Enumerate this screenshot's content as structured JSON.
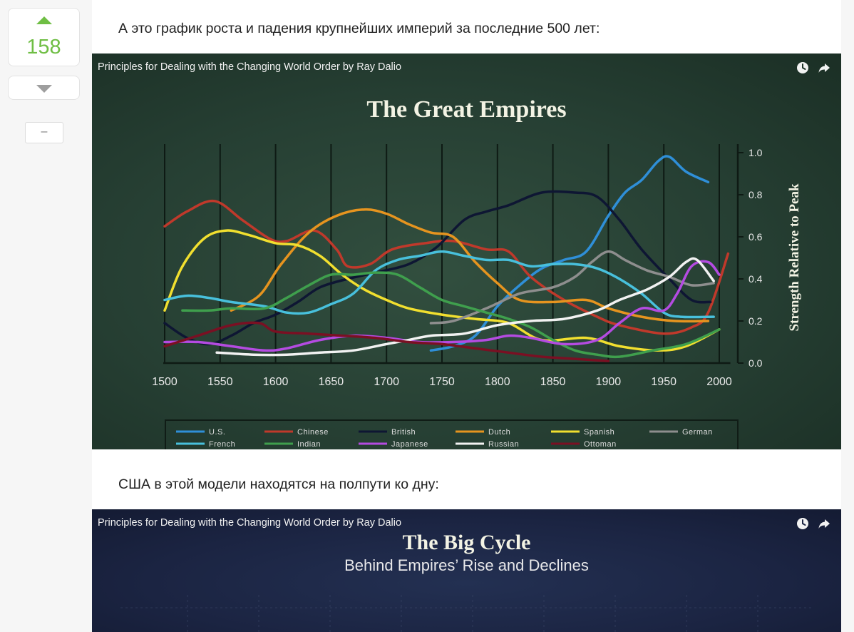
{
  "vote": {
    "count": "158",
    "collapse_label": "–"
  },
  "content": {
    "para1": "А это график роста и падения крупнейших империй за последние 500 лет:",
    "para2": "США в этой модели находятся на полпути ко дну:"
  },
  "video1": {
    "title": "Principles for Dealing with the Changing World Order by Ray Dalio",
    "icons": [
      "clock-icon",
      "share-icon"
    ]
  },
  "video2": {
    "title": "Principles for Dealing with the Changing World Order by Ray Dalio",
    "heading": "The Big Cycle",
    "subheading": "Behind Empires’ Rise and Declines"
  },
  "chart_data": {
    "type": "line",
    "title": "The Great Empires",
    "ylabel": "Strength Relative to Peak",
    "xlabel": "",
    "xlim": [
      1500,
      2010
    ],
    "ylim": [
      0,
      1
    ],
    "xticks": [
      1500,
      1550,
      1600,
      1650,
      1700,
      1750,
      1800,
      1850,
      1900,
      1950,
      2000
    ],
    "yticks": [
      "0.0",
      "0.2",
      "0.4",
      "0.6",
      "0.8",
      "1.0"
    ],
    "grid": "vertical",
    "legend": "bottom",
    "series": [
      {
        "name": "U.S.",
        "color": "#2f8fd8",
        "points": [
          [
            1740,
            0.06
          ],
          [
            1760,
            0.08
          ],
          [
            1780,
            0.13
          ],
          [
            1800,
            0.27
          ],
          [
            1820,
            0.37
          ],
          [
            1840,
            0.45
          ],
          [
            1860,
            0.49
          ],
          [
            1880,
            0.53
          ],
          [
            1900,
            0.7
          ],
          [
            1915,
            0.81
          ],
          [
            1930,
            0.87
          ],
          [
            1945,
            0.96
          ],
          [
            1955,
            0.98
          ],
          [
            1970,
            0.91
          ],
          [
            1990,
            0.86
          ]
        ]
      },
      {
        "name": "Chinese",
        "color": "#c0392b",
        "points": [
          [
            1500,
            0.65
          ],
          [
            1520,
            0.72
          ],
          [
            1545,
            0.77
          ],
          [
            1570,
            0.68
          ],
          [
            1595,
            0.59
          ],
          [
            1610,
            0.58
          ],
          [
            1635,
            0.63
          ],
          [
            1655,
            0.54
          ],
          [
            1665,
            0.46
          ],
          [
            1685,
            0.47
          ],
          [
            1705,
            0.54
          ],
          [
            1735,
            0.57
          ],
          [
            1760,
            0.58
          ],
          [
            1790,
            0.54
          ],
          [
            1810,
            0.53
          ],
          [
            1830,
            0.41
          ],
          [
            1860,
            0.3
          ],
          [
            1890,
            0.22
          ],
          [
            1910,
            0.18
          ],
          [
            1950,
            0.14
          ],
          [
            1975,
            0.17
          ],
          [
            1990,
            0.24
          ],
          [
            2008,
            0.52
          ]
        ]
      },
      {
        "name": "British",
        "color": "#0e1633",
        "points": [
          [
            1500,
            0.19
          ],
          [
            1520,
            0.12
          ],
          [
            1540,
            0.09
          ],
          [
            1560,
            0.13
          ],
          [
            1580,
            0.19
          ],
          [
            1600,
            0.23
          ],
          [
            1620,
            0.29
          ],
          [
            1640,
            0.36
          ],
          [
            1665,
            0.4
          ],
          [
            1690,
            0.43
          ],
          [
            1720,
            0.47
          ],
          [
            1745,
            0.55
          ],
          [
            1770,
            0.68
          ],
          [
            1790,
            0.72
          ],
          [
            1810,
            0.75
          ],
          [
            1840,
            0.81
          ],
          [
            1870,
            0.81
          ],
          [
            1890,
            0.79
          ],
          [
            1910,
            0.68
          ],
          [
            1930,
            0.54
          ],
          [
            1955,
            0.4
          ],
          [
            1975,
            0.3
          ],
          [
            1992,
            0.29
          ]
        ]
      },
      {
        "name": "Dutch",
        "color": "#e6941f",
        "points": [
          [
            1560,
            0.25
          ],
          [
            1585,
            0.32
          ],
          [
            1605,
            0.47
          ],
          [
            1630,
            0.62
          ],
          [
            1655,
            0.7
          ],
          [
            1680,
            0.73
          ],
          [
            1700,
            0.71
          ],
          [
            1720,
            0.66
          ],
          [
            1740,
            0.62
          ],
          [
            1760,
            0.6
          ],
          [
            1780,
            0.48
          ],
          [
            1800,
            0.38
          ],
          [
            1820,
            0.3
          ],
          [
            1850,
            0.29
          ],
          [
            1880,
            0.3
          ],
          [
            1900,
            0.26
          ],
          [
            1930,
            0.22
          ],
          [
            1960,
            0.2
          ],
          [
            1990,
            0.2
          ]
        ]
      },
      {
        "name": "Spanish",
        "color": "#f1df2f",
        "points": [
          [
            1500,
            0.25
          ],
          [
            1515,
            0.45
          ],
          [
            1535,
            0.59
          ],
          [
            1555,
            0.63
          ],
          [
            1575,
            0.61
          ],
          [
            1600,
            0.57
          ],
          [
            1620,
            0.56
          ],
          [
            1640,
            0.51
          ],
          [
            1660,
            0.42
          ],
          [
            1680,
            0.35
          ],
          [
            1700,
            0.3
          ],
          [
            1720,
            0.26
          ],
          [
            1750,
            0.23
          ],
          [
            1780,
            0.21
          ],
          [
            1810,
            0.19
          ],
          [
            1840,
            0.11
          ],
          [
            1880,
            0.12
          ],
          [
            1910,
            0.08
          ],
          [
            1945,
            0.06
          ],
          [
            1970,
            0.08
          ],
          [
            2000,
            0.16
          ]
        ]
      },
      {
        "name": "German",
        "color": "#8e8e8e",
        "points": [
          [
            1740,
            0.19
          ],
          [
            1760,
            0.2
          ],
          [
            1790,
            0.26
          ],
          [
            1820,
            0.33
          ],
          [
            1850,
            0.36
          ],
          [
            1870,
            0.41
          ],
          [
            1885,
            0.48
          ],
          [
            1900,
            0.53
          ],
          [
            1915,
            0.49
          ],
          [
            1935,
            0.44
          ],
          [
            1955,
            0.41
          ],
          [
            1975,
            0.37
          ],
          [
            1995,
            0.38
          ]
        ]
      },
      {
        "name": "French",
        "color": "#48c0dc",
        "points": [
          [
            1500,
            0.3
          ],
          [
            1520,
            0.32
          ],
          [
            1540,
            0.31
          ],
          [
            1560,
            0.29
          ],
          [
            1590,
            0.27
          ],
          [
            1610,
            0.24
          ],
          [
            1630,
            0.24
          ],
          [
            1650,
            0.28
          ],
          [
            1670,
            0.33
          ],
          [
            1690,
            0.44
          ],
          [
            1710,
            0.49
          ],
          [
            1730,
            0.51
          ],
          [
            1750,
            0.53
          ],
          [
            1770,
            0.51
          ],
          [
            1790,
            0.49
          ],
          [
            1810,
            0.49
          ],
          [
            1830,
            0.46
          ],
          [
            1850,
            0.47
          ],
          [
            1870,
            0.47
          ],
          [
            1890,
            0.45
          ],
          [
            1910,
            0.4
          ],
          [
            1930,
            0.33
          ],
          [
            1950,
            0.24
          ],
          [
            1965,
            0.22
          ],
          [
            1995,
            0.22
          ]
        ]
      },
      {
        "name": "Indian",
        "color": "#3f9f4d",
        "points": [
          [
            1516,
            0.25
          ],
          [
            1540,
            0.25
          ],
          [
            1560,
            0.26
          ],
          [
            1590,
            0.26
          ],
          [
            1610,
            0.31
          ],
          [
            1630,
            0.37
          ],
          [
            1650,
            0.42
          ],
          [
            1670,
            0.42
          ],
          [
            1690,
            0.43
          ],
          [
            1710,
            0.42
          ],
          [
            1730,
            0.36
          ],
          [
            1750,
            0.3
          ],
          [
            1770,
            0.27
          ],
          [
            1790,
            0.24
          ],
          [
            1810,
            0.21
          ],
          [
            1830,
            0.17
          ],
          [
            1850,
            0.11
          ],
          [
            1870,
            0.06
          ],
          [
            1890,
            0.04
          ],
          [
            1910,
            0.03
          ],
          [
            1940,
            0.06
          ],
          [
            1970,
            0.09
          ],
          [
            2000,
            0.16
          ]
        ]
      },
      {
        "name": "Japanese",
        "color": "#b44be1",
        "points": [
          [
            1500,
            0.1
          ],
          [
            1530,
            0.1
          ],
          [
            1560,
            0.08
          ],
          [
            1590,
            0.06
          ],
          [
            1610,
            0.07
          ],
          [
            1640,
            0.11
          ],
          [
            1670,
            0.13
          ],
          [
            1700,
            0.12
          ],
          [
            1730,
            0.1
          ],
          [
            1760,
            0.1
          ],
          [
            1790,
            0.11
          ],
          [
            1810,
            0.13
          ],
          [
            1830,
            0.12
          ],
          [
            1860,
            0.09
          ],
          [
            1890,
            0.11
          ],
          [
            1910,
            0.19
          ],
          [
            1930,
            0.26
          ],
          [
            1950,
            0.25
          ],
          [
            1962,
            0.33
          ],
          [
            1975,
            0.46
          ],
          [
            1990,
            0.48
          ],
          [
            2000,
            0.42
          ]
        ]
      },
      {
        "name": "Russian",
        "color": "#f2f2f2",
        "points": [
          [
            1547,
            0.05
          ],
          [
            1580,
            0.04
          ],
          [
            1610,
            0.04
          ],
          [
            1640,
            0.05
          ],
          [
            1670,
            0.06
          ],
          [
            1700,
            0.09
          ],
          [
            1720,
            0.11
          ],
          [
            1740,
            0.13
          ],
          [
            1770,
            0.14
          ],
          [
            1800,
            0.18
          ],
          [
            1830,
            0.2
          ],
          [
            1860,
            0.21
          ],
          [
            1890,
            0.25
          ],
          [
            1910,
            0.3
          ],
          [
            1935,
            0.35
          ],
          [
            1955,
            0.41
          ],
          [
            1970,
            0.48
          ],
          [
            1980,
            0.49
          ],
          [
            1995,
            0.39
          ]
        ]
      },
      {
        "name": "Ottoman",
        "color": "#7a1023",
        "points": [
          [
            1500,
            0.08
          ],
          [
            1530,
            0.13
          ],
          [
            1560,
            0.18
          ],
          [
            1585,
            0.19
          ],
          [
            1600,
            0.15
          ],
          [
            1630,
            0.14
          ],
          [
            1660,
            0.13
          ],
          [
            1690,
            0.12
          ],
          [
            1720,
            0.1
          ],
          [
            1750,
            0.09
          ],
          [
            1780,
            0.07
          ],
          [
            1810,
            0.05
          ],
          [
            1840,
            0.03
          ],
          [
            1870,
            0.02
          ],
          [
            1900,
            0.01
          ]
        ]
      }
    ]
  }
}
